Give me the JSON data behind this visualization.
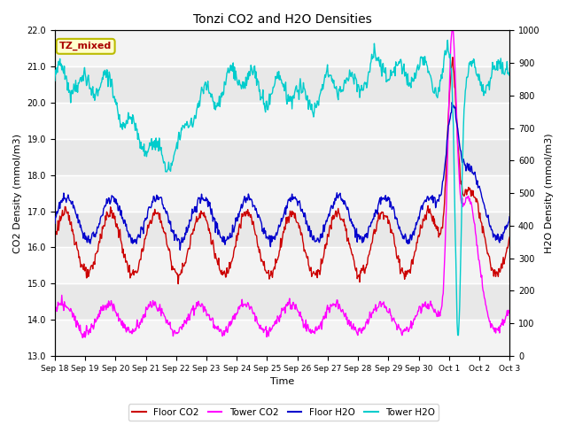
{
  "title": "Tonzi CO2 and H2O Densities",
  "xlabel": "Time",
  "ylabel_left": "CO2 Density (mmol/m3)",
  "ylabel_right": "H2O Density (mmol/m3)",
  "ylim_left": [
    13.0,
    22.0
  ],
  "ylim_right": [
    0,
    1000
  ],
  "annotation_text": "TZ_mixed",
  "colors": {
    "floor_co2": "#cc0000",
    "tower_co2": "#ff00ff",
    "floor_h2o": "#0000cc",
    "tower_h2o": "#00cccc"
  },
  "legend_labels": [
    "Floor CO2",
    "Tower CO2",
    "Floor H2O",
    "Tower H2O"
  ],
  "n_points": 720,
  "background_color": "#ffffff",
  "plot_bg": "#e8e8e8",
  "band_color": "#d0d0d0"
}
